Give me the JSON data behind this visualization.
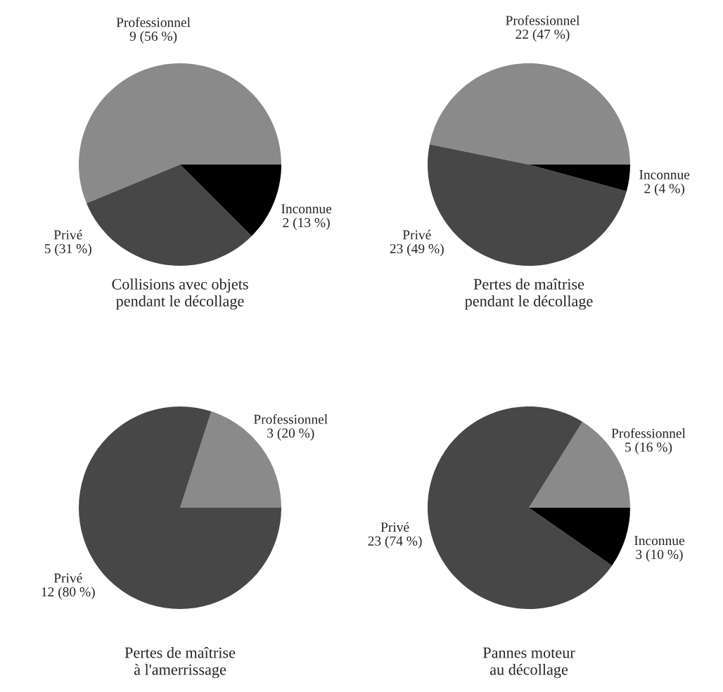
{
  "chart_data": [
    {
      "type": "pie",
      "title": "Collisions avec objets\npendant le décollage",
      "categories": [
        "Professionnel",
        "Privé",
        "Inconnue"
      ],
      "values": [
        9,
        5,
        2
      ],
      "value_labels": [
        "9 (56 %)",
        "5 (31 %)",
        "2 (13 %)"
      ],
      "colors": [
        "#8a8a8a",
        "#474747",
        "#000000"
      ]
    },
    {
      "type": "pie",
      "title": "Pertes de maîtrise\npendant le décollage",
      "categories": [
        "Professionnel",
        "Privé",
        "Inconnue"
      ],
      "values": [
        22,
        23,
        2
      ],
      "value_labels": [
        "22 (47 %)",
        "23 (49 %)",
        "2 (4 %)"
      ],
      "colors": [
        "#8a8a8a",
        "#474747",
        "#000000"
      ]
    },
    {
      "type": "pie",
      "title": "Pertes de maîtrise\nà l'amerrissage",
      "categories": [
        "Professionnel",
        "Privé"
      ],
      "values": [
        3,
        12
      ],
      "value_labels": [
        "3 (20 %)",
        "12 (80 %)"
      ],
      "colors": [
        "#8a8a8a",
        "#474747"
      ]
    },
    {
      "type": "pie",
      "title": "Pannes moteur\nau décollage",
      "categories": [
        "Professionnel",
        "Privé",
        "Inconnue"
      ],
      "values": [
        5,
        23,
        3
      ],
      "value_labels": [
        "5 (16 %)",
        "23 (74 %)",
        "3 (10 %)"
      ],
      "colors": [
        "#8a8a8a",
        "#474747",
        "#000000"
      ]
    }
  ]
}
